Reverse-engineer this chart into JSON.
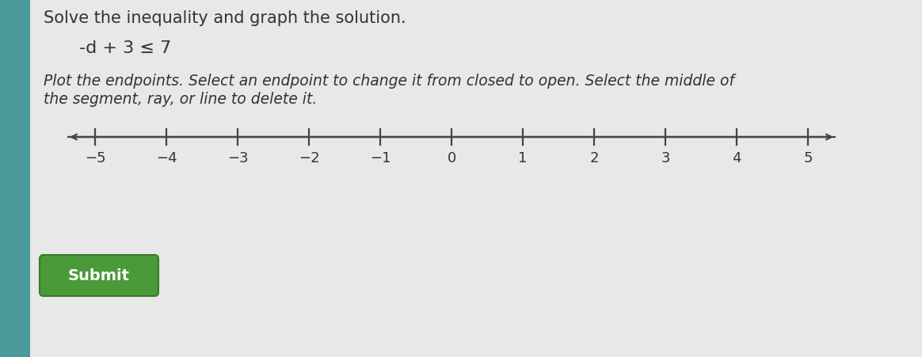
{
  "title": "Solve the inequality and graph the solution.",
  "inequality": "-d + 3 ≤ 7",
  "instruction_line1": "Plot the endpoints. Select an endpoint to change it from closed to open. Select the middle of",
  "instruction_line2": "the segment, ray, or line to delete it.",
  "tick_positions": [
    -5,
    -4,
    -3,
    -2,
    -1,
    0,
    1,
    2,
    3,
    4,
    5
  ],
  "tick_labels": [
    "−5",
    "−4",
    "−3",
    "−2",
    "−1",
    "0",
    "1",
    "2",
    "3",
    "4",
    "5"
  ],
  "background_color": "#c8cece",
  "content_bg_color": "#e8e8e8",
  "left_bar_color": "#4a9a9a",
  "number_line_color": "#444444",
  "text_color": "#333333",
  "submit_bg_color": "#4a9a3a",
  "submit_text_color": "#ffffff",
  "submit_label": "Submit",
  "title_fontsize": 15,
  "inequality_fontsize": 16,
  "instruction_fontsize": 13.5,
  "tick_fontsize": 13
}
